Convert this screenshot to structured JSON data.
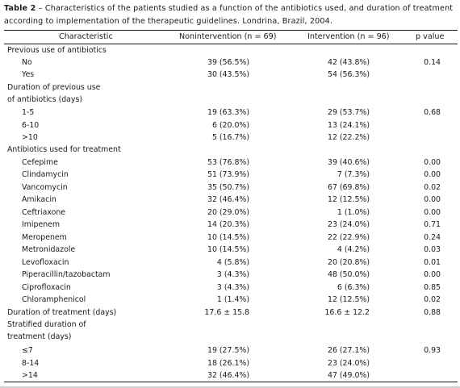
{
  "caption": {
    "label": "Table 2",
    "text": " – Characteristics of the patients studied as a function of the antibiotics used, and duration of treatment according to implementation of the therapeutic guidelines. Londrina, Brazil, 2004."
  },
  "headers": {
    "characteristic": "Characteristic",
    "nonintervention": "Nonintervention (n = 69)",
    "intervention": "Intervention (n = 96)",
    "pvalue": "p value"
  },
  "rows": [
    {
      "label": "Previous use of antibiotics",
      "level": 0,
      "non": "",
      "int": "",
      "p": ""
    },
    {
      "label": "No",
      "level": 1,
      "non": "39 (56.5%)",
      "int": "42 (43.8%)",
      "p": "0.14"
    },
    {
      "label": "Yes",
      "level": 1,
      "non": "30 (43.5%)",
      "int": "54 (56.3%)",
      "p": ""
    },
    {
      "label": "Duration of previous use",
      "level": 0,
      "non": "",
      "int": "",
      "p": ""
    },
    {
      "label": "of antibiotics (days)",
      "level": 0,
      "non": "",
      "int": "",
      "p": ""
    },
    {
      "label": "1-5",
      "level": 1,
      "non": "19 (63.3%)",
      "int": "29 (53.7%)",
      "p": "0.68"
    },
    {
      "label": "6-10",
      "level": 1,
      "non": "6 (20.0%)",
      "int": "13 (24.1%)",
      "p": ""
    },
    {
      "label": ">10",
      "level": 1,
      "non": "5 (16.7%)",
      "int": "12 (22.2%)",
      "p": ""
    },
    {
      "label": "Antibiotics used for treatment",
      "level": 0,
      "non": "",
      "int": "",
      "p": ""
    },
    {
      "label": "Cefepime",
      "level": 1,
      "non": "53 (76.8%)",
      "int": "39 (40.6%)",
      "p": "0.00"
    },
    {
      "label": "Clindamycin",
      "level": 1,
      "non": "51 (73.9%)",
      "int": "7 (7.3%)",
      "p": "0.00"
    },
    {
      "label": "Vancomycin",
      "level": 1,
      "non": "35 (50.7%)",
      "int": "67 (69.8%)",
      "p": "0.02"
    },
    {
      "label": "Amikacin",
      "level": 1,
      "non": "32 (46.4%)",
      "int": "12 (12.5%)",
      "p": "0.00"
    },
    {
      "label": "Ceftriaxone",
      "level": 1,
      "non": "20 (29.0%)",
      "int": "1 (1.0%)",
      "p": "0.00"
    },
    {
      "label": "Imipenem",
      "level": 1,
      "non": "14 (20.3%)",
      "int": "23 (24.0%)",
      "p": "0.71"
    },
    {
      "label": "Meropenem",
      "level": 1,
      "non": "10 (14.5%)",
      "int": "22 (22.9%)",
      "p": "0.24"
    },
    {
      "label": "Metronidazole",
      "level": 1,
      "non": "10 (14.5%)",
      "int": "4 (4.2%)",
      "p": "0.03"
    },
    {
      "label": "Levofloxacin",
      "level": 1,
      "non": "4 (5.8%)",
      "int": "20 (20.8%)",
      "p": "0.01"
    },
    {
      "label": "Piperacillin/tazobactam",
      "level": 1,
      "non": "3 (4.3%)",
      "int": "48 (50.0%)",
      "p": "0.00"
    },
    {
      "label": "Ciprofloxacin",
      "level": 1,
      "non": "3 (4.3%)",
      "int": "6 (6.3%)",
      "p": "0.85"
    },
    {
      "label": "Chloramphenicol",
      "level": 1,
      "non": "1 (1.4%)",
      "int": "12 (12.5%)",
      "p": "0.02"
    },
    {
      "label": "Duration of treatment (days)",
      "level": 0,
      "non": "17.6 ± 15.8",
      "int": "16.6 ± 12.2",
      "p": "0.88"
    },
    {
      "label": "Stratified duration of",
      "level": 0,
      "non": "",
      "int": "",
      "p": ""
    },
    {
      "label": "treatment (days)",
      "level": 0,
      "non": "",
      "int": "",
      "p": ""
    },
    {
      "label": "≤7",
      "level": 1,
      "non": "19 (27.5%)",
      "int": "26 (27.1%)",
      "p": "0.93"
    },
    {
      "label": "8-14",
      "level": 1,
      "non": "18 (26.1%)",
      "int": "23 (24.0%)",
      "p": ""
    },
    {
      "label": ">14",
      "level": 1,
      "non": "32 (46.4%)",
      "int": "47 (49.0%)",
      "p": ""
    }
  ]
}
